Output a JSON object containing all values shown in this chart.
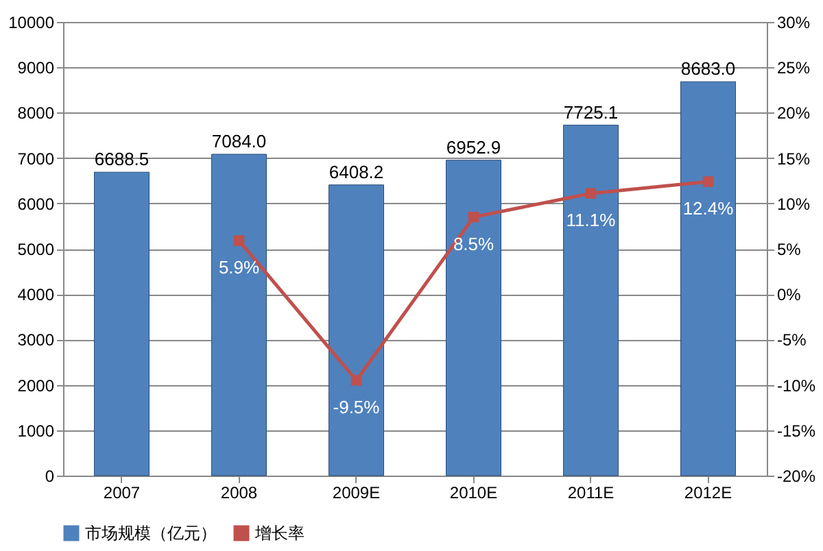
{
  "chart_data": {
    "type": "bar",
    "categories": [
      "2007",
      "2008",
      "2009E",
      "2010E",
      "2011E",
      "2012E"
    ],
    "series": [
      {
        "name": "市场规模（亿元）",
        "color": "#4f81bd",
        "values": [
          6688.5,
          7084.0,
          6408.2,
          6952.9,
          7725.1,
          8683.0
        ],
        "value_labels": [
          "6688.5",
          "7084.0",
          "6408.2",
          "6952.9",
          "7725.1",
          "8683.0"
        ]
      },
      {
        "name": "增长率",
        "type": "line",
        "axis": "y2",
        "color": "#c0504d",
        "marker": "square",
        "values": [
          null,
          5.9,
          -9.5,
          8.5,
          11.1,
          12.4
        ],
        "value_labels": [
          null,
          "5.9%",
          "-9.5%",
          "8.5%",
          "11.1%",
          "12.4%"
        ]
      }
    ],
    "ylim": [
      0,
      10000
    ],
    "yticks": [
      0,
      1000,
      2000,
      3000,
      4000,
      5000,
      6000,
      7000,
      8000,
      9000,
      10000
    ],
    "y2lim": [
      -20,
      30
    ],
    "y2ticks": [
      {
        "value": -20,
        "label": "-20%"
      },
      {
        "value": -15,
        "label": "-15%"
      },
      {
        "value": -10,
        "label": "-10%"
      },
      {
        "value": -5,
        "label": "-5%"
      },
      {
        "value": 0,
        "label": "0%"
      },
      {
        "value": 5,
        "label": "5%"
      },
      {
        "value": 10,
        "label": "10%"
      },
      {
        "value": 15,
        "label": "15%"
      },
      {
        "value": 20,
        "label": "20%"
      },
      {
        "value": 25,
        "label": "25%"
      },
      {
        "value": 30,
        "label": "30%"
      }
    ],
    "grid": "y",
    "legend": "bottom"
  }
}
